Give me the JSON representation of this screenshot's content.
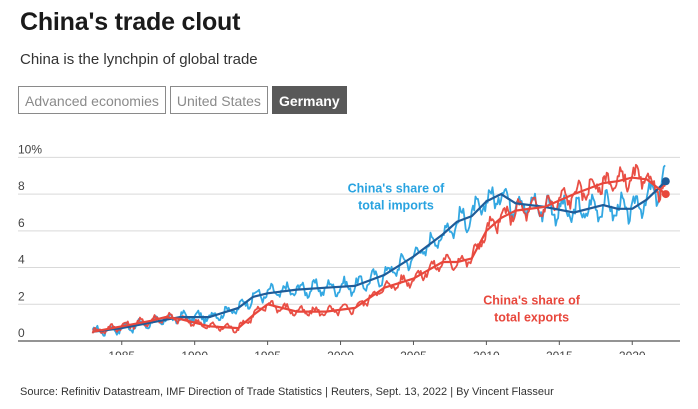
{
  "title": "China's trade clout",
  "subtitle": "China is the lynchpin of global trade",
  "tabs": [
    {
      "label": "Advanced economies",
      "active": false
    },
    {
      "label": "United States",
      "active": false
    },
    {
      "label": "Germany",
      "active": true
    }
  ],
  "source": "Source: Refinitiv Datastream, IMF Direction of Trade Statistics | Reuters, Sept. 13, 2022 | By Vincent Flasseur",
  "chart_data": {
    "type": "line",
    "title": "",
    "xlabel": "",
    "ylabel": "",
    "xlim": [
      1982,
      2023
    ],
    "ylim": [
      0,
      11
    ],
    "x_ticks": [
      1985,
      1990,
      1995,
      2000,
      2005,
      2010,
      2015,
      2020
    ],
    "y_ticks": [
      0,
      2,
      4,
      6,
      8,
      10
    ],
    "y_tick_labels": [
      "0",
      "2",
      "4",
      "6",
      "8",
      "10%"
    ],
    "grid": true,
    "series": [
      {
        "name": "China's share of total imports",
        "color": "#29a3e0",
        "trend_color": "#1f5c99",
        "x": [
          1983,
          1985,
          1987,
          1989,
          1991,
          1993,
          1994,
          1995,
          1997,
          1999,
          2001,
          2003,
          2005,
          2007,
          2008,
          2009,
          2010,
          2011,
          2012,
          2014,
          2016,
          2018,
          2019,
          2020,
          2021,
          2022.3
        ],
        "values": [
          0.5,
          0.7,
          1.0,
          1.3,
          1.3,
          1.8,
          2.4,
          2.6,
          2.8,
          2.9,
          3.0,
          3.6,
          4.6,
          5.8,
          6.5,
          6.8,
          7.6,
          8.0,
          7.5,
          7.3,
          7.0,
          7.4,
          7.2,
          7.2,
          7.7,
          8.7
        ]
      },
      {
        "name": "China's share of total exports",
        "color": "#e8473c",
        "trend_color": "#e8473c",
        "x": [
          1983,
          1985,
          1987,
          1988,
          1989,
          1991,
          1993,
          1994,
          1995,
          1997,
          1999,
          2001,
          2003,
          2005,
          2007,
          2008,
          2009,
          2010,
          2011,
          2012,
          2014,
          2016,
          2018,
          2019,
          2020,
          2021,
          2022.3
        ],
        "values": [
          0.5,
          0.8,
          1.1,
          1.3,
          1.2,
          0.8,
          0.7,
          1.4,
          2.0,
          1.6,
          1.6,
          1.8,
          2.9,
          3.4,
          4.3,
          4.3,
          4.5,
          6.0,
          6.7,
          7.1,
          7.3,
          8.0,
          8.6,
          8.7,
          8.9,
          8.8,
          8.0
        ]
      }
    ],
    "annotations": [
      {
        "text": [
          "China's share of",
          "total imports"
        ],
        "color": "#29a3e0",
        "x": 2003.8,
        "y": 8.1
      },
      {
        "text": [
          "China's share of",
          "total exports"
        ],
        "color": "#e8473c",
        "x": 2013.1,
        "y": 2.0
      }
    ]
  }
}
